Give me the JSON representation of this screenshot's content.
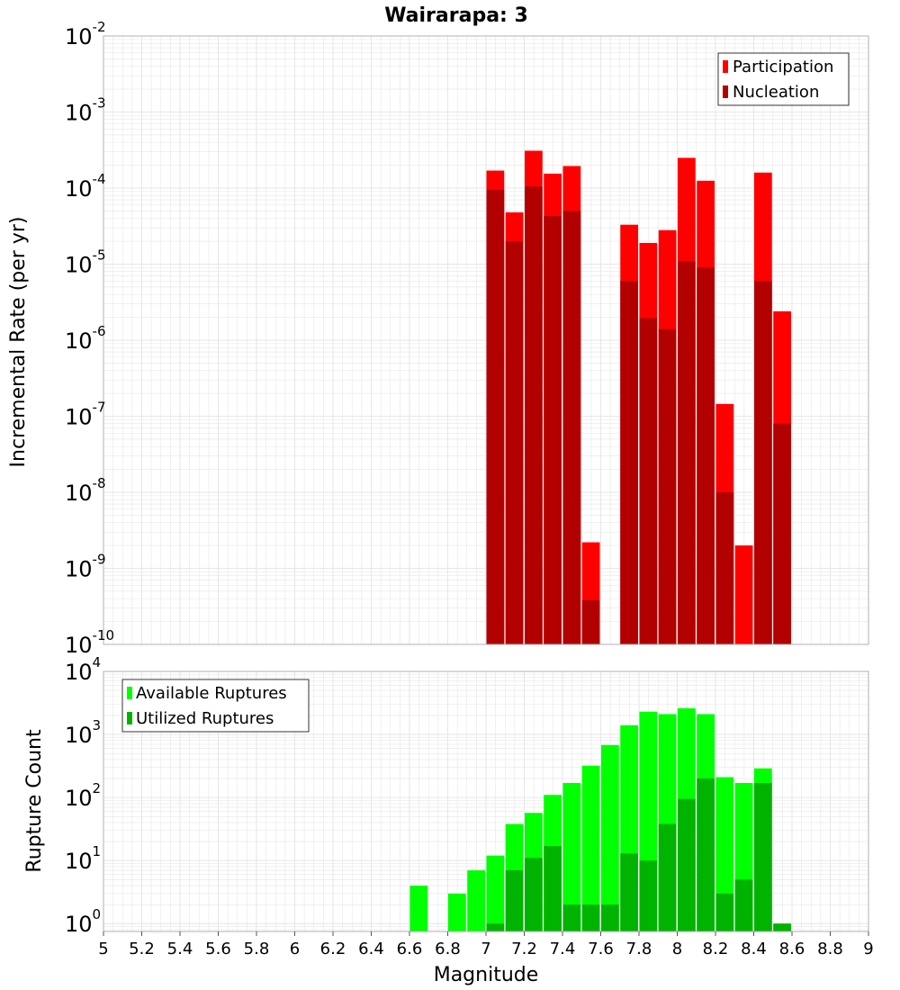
{
  "title": "Wairarapa: 3",
  "colors": {
    "participation": "#ff0000",
    "nucleation": "#b20000",
    "available": "#00ff00",
    "utilized": "#00b300",
    "grid": "#e6e6e6",
    "frame": "#b0b0b0"
  },
  "chart_data": [
    {
      "type": "bar",
      "name": "top",
      "ylabel": "Incremental Rate (per yr)",
      "yscale": "log",
      "ylim": [
        1e-10,
        0.01
      ],
      "xlim": [
        5,
        9
      ],
      "ytick_exponents": [
        "-10",
        "-9",
        "-8",
        "-7",
        "-6",
        "-5",
        "-4",
        "-3",
        "-2"
      ],
      "legend": {
        "position": "top-right",
        "entries": [
          "Participation",
          "Nucleation"
        ]
      },
      "x": [
        7.05,
        7.15,
        7.25,
        7.35,
        7.45,
        7.55,
        7.75,
        7.85,
        7.95,
        8.05,
        8.15,
        8.25,
        8.35,
        8.45,
        8.55
      ],
      "series": [
        {
          "name": "Participation",
          "values": [
            0.00017,
            4.8e-05,
            0.00031,
            0.000155,
            0.000195,
            2.2e-09,
            3.3e-05,
            1.9e-05,
            2.8e-05,
            0.00025,
            0.000125,
            1.45e-07,
            2e-09,
            0.00016,
            2.4e-06
          ]
        },
        {
          "name": "Nucleation",
          "values": [
            9.5e-05,
            2e-05,
            0.000105,
            4.3e-05,
            5e-05,
            3.8e-10,
            6e-06,
            1.95e-06,
            1.4e-06,
            1.1e-05,
            9e-06,
            1e-08,
            null,
            6e-06,
            8e-08
          ]
        }
      ]
    },
    {
      "type": "bar",
      "name": "bottom",
      "ylabel": "Rupture Count",
      "xlabel": "Magnitude",
      "yscale": "log",
      "ylim": [
        0.75,
        10000
      ],
      "xlim": [
        5,
        9
      ],
      "ytick_exponents": [
        "0",
        "1",
        "2",
        "3",
        "4"
      ],
      "xticks": [
        "5",
        "5.2",
        "5.4",
        "5.6",
        "5.8",
        "6",
        "6.2",
        "6.4",
        "6.6",
        "6.8",
        "7",
        "7.2",
        "7.4",
        "7.6",
        "7.8",
        "8",
        "8.2",
        "8.4",
        "8.6",
        "8.8",
        "9"
      ],
      "legend": {
        "position": "top-left",
        "entries": [
          "Available Ruptures",
          "Utilized Ruptures"
        ]
      },
      "x": [
        6.65,
        6.85,
        6.95,
        7.05,
        7.15,
        7.25,
        7.35,
        7.45,
        7.55,
        7.65,
        7.75,
        7.85,
        7.95,
        8.05,
        8.15,
        8.25,
        8.35,
        8.45,
        8.55
      ],
      "series": [
        {
          "name": "Available Ruptures",
          "values": [
            4,
            3,
            7,
            12,
            38,
            57,
            110,
            170,
            320,
            680,
            1400,
            2300,
            2100,
            2600,
            2100,
            210,
            170,
            290,
            1
          ]
        },
        {
          "name": "Utilized Ruptures",
          "values": [
            null,
            null,
            null,
            1,
            7,
            11,
            17,
            2,
            2,
            2,
            13,
            10,
            38,
            95,
            200,
            3,
            5,
            170,
            1
          ]
        }
      ]
    }
  ]
}
